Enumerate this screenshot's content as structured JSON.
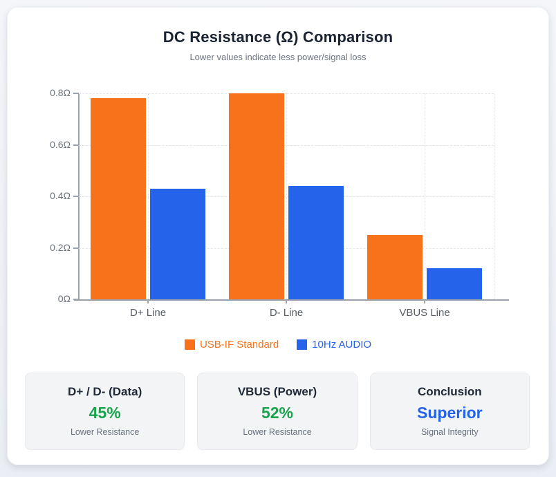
{
  "page": {
    "title": "DC Resistance (Ω) Comparison",
    "subtitle": "Lower values indicate less power/signal loss"
  },
  "chart_data": {
    "type": "bar",
    "categories": [
      "D+ Line",
      "D- Line",
      "VBUS Line"
    ],
    "series": [
      {
        "name": "USB-IF Standard",
        "color": "#f7721b",
        "values": [
          0.78,
          0.8,
          0.25
        ]
      },
      {
        "name": "10Hz AUDIO",
        "color": "#2563eb",
        "values": [
          0.43,
          0.44,
          0.12
        ]
      }
    ],
    "title": "DC Resistance (Ω) Comparison",
    "subtitle": "Lower values indicate less power/signal loss",
    "xlabel": "",
    "ylabel": "",
    "ylim": [
      0,
      0.8
    ],
    "yticks": [
      {
        "value": 0,
        "label": "0Ω"
      },
      {
        "value": 0.2,
        "label": "0.2Ω"
      },
      {
        "value": 0.4,
        "label": "0.4Ω"
      },
      {
        "value": 0.6,
        "label": "0.6Ω"
      },
      {
        "value": 0.8,
        "label": "0.8Ω"
      }
    ],
    "grid": true,
    "grid_style": "dashed",
    "legend_position": "bottom"
  },
  "summary_cards": [
    {
      "title": "D+ / D- (Data)",
      "value": "45%",
      "value_color": "#16a34a",
      "caption": "Lower Resistance"
    },
    {
      "title": "VBUS (Power)",
      "value": "52%",
      "value_color": "#16a34a",
      "caption": "Lower Resistance"
    },
    {
      "title": "Conclusion",
      "value": "Superior",
      "value_color": "#2563eb",
      "caption": "Signal Integrity"
    }
  ]
}
